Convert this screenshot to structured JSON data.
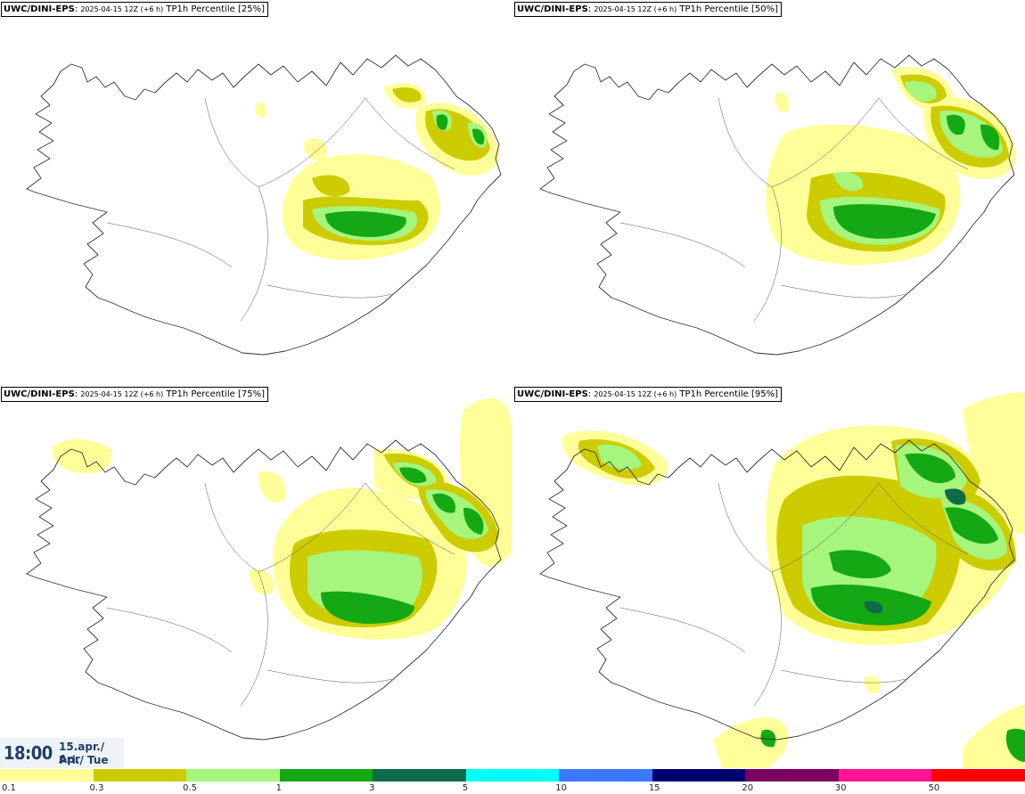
{
  "panels": [
    {
      "model": "UWC/DINI-EPS",
      "run": "2025-04-15 12Z (+6 h)",
      "field": "TP1h Percentile [25%]"
    },
    {
      "model": "UWC/DINI-EPS",
      "run": "2025-04-15 12Z (+6 h)",
      "field": "TP1h Percentile [50%]"
    },
    {
      "model": "UWC/DINI-EPS",
      "run": "2025-04-15 12Z (+6 h)",
      "field": "TP1h Percentile [75%]"
    },
    {
      "model": "UWC/DINI-EPS",
      "run": "2025-04-15 12Z (+6 h)",
      "field": "TP1h Percentile [95%]"
    }
  ],
  "valid_time": {
    "time": "18:00",
    "date_line": "15.apr./ Apr",
    "day_line": "Þri./ Tue"
  },
  "legend": {
    "labels": [
      "0.1",
      "0.3",
      "0.5",
      "1",
      "3",
      "5",
      "10",
      "15",
      "20",
      "30",
      "50"
    ],
    "colors": [
      "#ffff99",
      "#cccc00",
      "#a6f57c",
      "#14a814",
      "#0d6b4a",
      "#00ffff",
      "#3c78ff",
      "#00006e",
      "#7d0064",
      "#ff1493",
      "#ff0000"
    ]
  },
  "colors": {
    "coast": "#333333",
    "p_light": "#ffff99",
    "p_olive": "#cccc00",
    "p_lightgreen": "#a6f57c",
    "p_green": "#14a814",
    "p_dark": "#0d6b4a"
  }
}
